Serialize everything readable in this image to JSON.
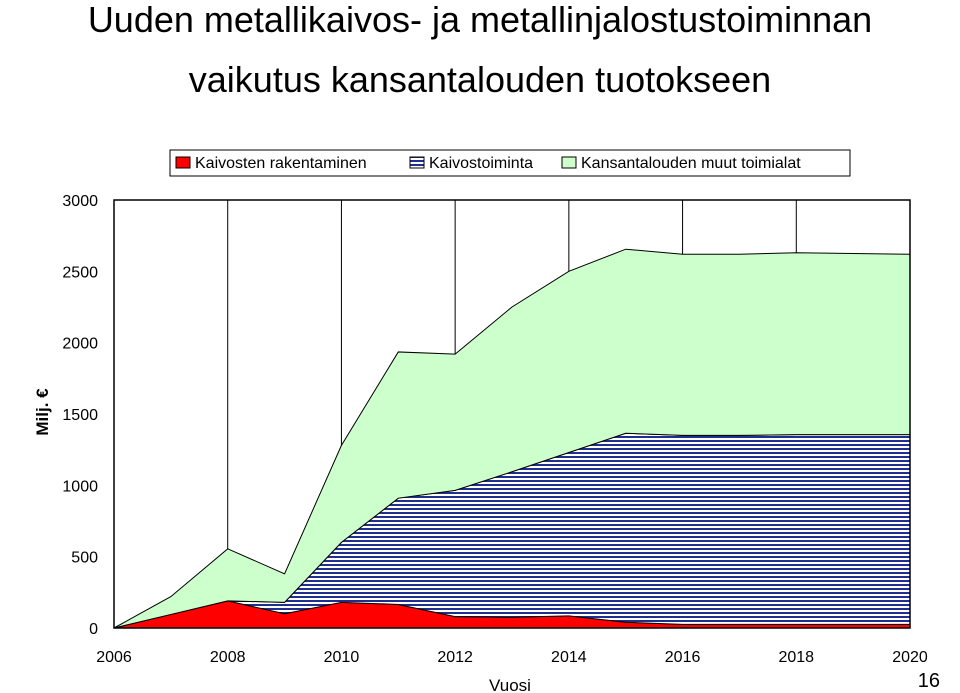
{
  "slide": {
    "title_line1": "Uuden metallikaivos- ja metallinjalostustoiminnan",
    "title_line2": "vaikutus kansantalouden tuotokseen",
    "page_number": "16"
  },
  "chart_data": {
    "type": "area",
    "stacked": true,
    "xlabel": "Vuosi",
    "ylabel": "Milj. €",
    "xlim": [
      2006,
      2020
    ],
    "ylim": [
      0,
      3000
    ],
    "yticks": [
      0,
      500,
      1000,
      1500,
      2000,
      2500,
      3000
    ],
    "xticks": [
      2006,
      2008,
      2010,
      2012,
      2014,
      2016,
      2018,
      2020
    ],
    "grid": "vertical",
    "legend_position": "top",
    "x": [
      2006,
      2007,
      2008,
      2009,
      2010,
      2011,
      2012,
      2013,
      2014,
      2015,
      2016,
      2017,
      2018,
      2019,
      2020
    ],
    "series": [
      {
        "name": "Kaivosten rakentaminen",
        "color": "#ff0000",
        "pattern": "solid",
        "values": [
          0,
          95,
          190,
          100,
          180,
          165,
          80,
          75,
          85,
          40,
          25,
          25,
          25,
          25,
          25
        ]
      },
      {
        "name": "Kaivostoiminta",
        "color": "#1f2f8f",
        "pattern": "horizontal-lines",
        "values": [
          0,
          0,
          0,
          80,
          420,
          745,
          885,
          1020,
          1145,
          1325,
          1325,
          1325,
          1330,
          1330,
          1330
        ]
      },
      {
        "name": "Kansantalouden muut toimialat",
        "color": "#ccffcc",
        "pattern": "solid",
        "values": [
          0,
          125,
          365,
          200,
          680,
          1025,
          955,
          1155,
          1270,
          1290,
          1270,
          1270,
          1275,
          1270,
          1265
        ]
      }
    ]
  }
}
